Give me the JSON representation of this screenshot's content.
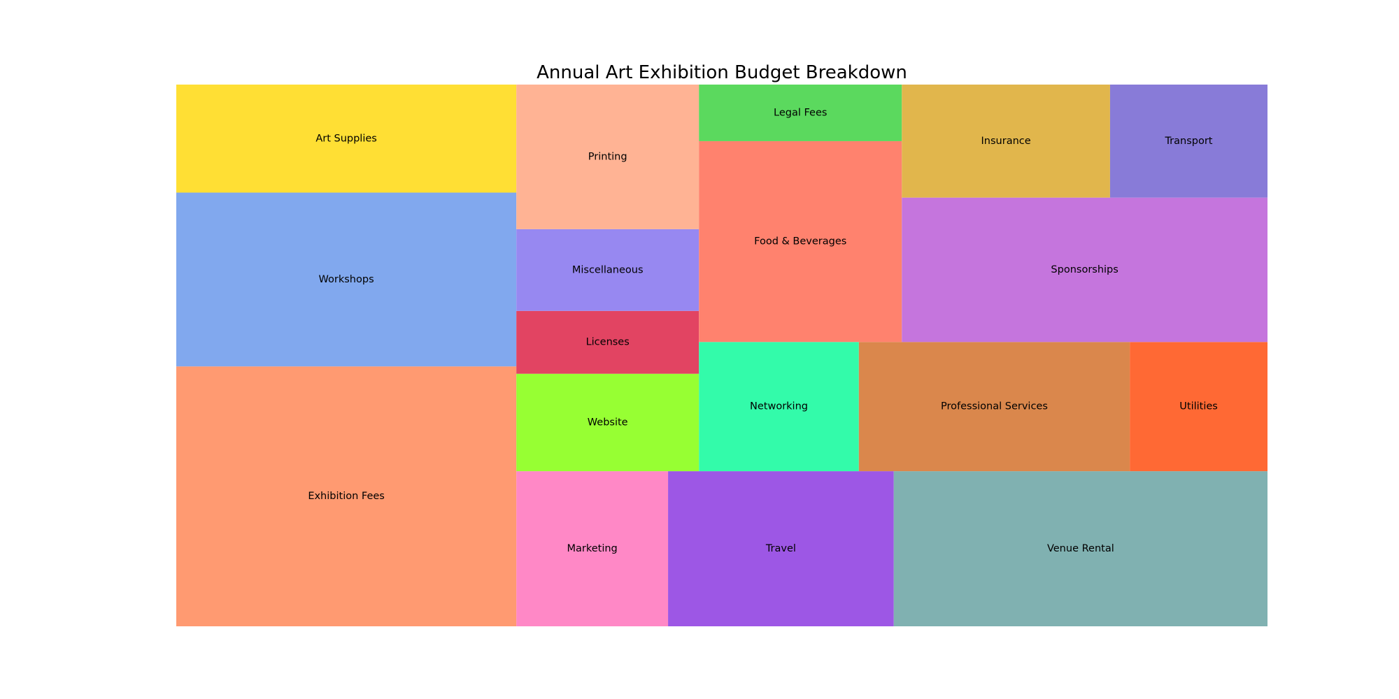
{
  "chart_data": {
    "type": "treemap",
    "title": "Annual Art Exhibition Budget Breakdown",
    "layout": "squarified",
    "unit": "relative area (estimated)",
    "columns": [
      {
        "items": [
          {
            "label": "Exhibition Fees",
            "value": 15.4,
            "color": "#FF9A71"
          },
          {
            "label": "Workshops",
            "value": 10.3,
            "color": "#81A8EE"
          },
          {
            "label": "Art Supplies",
            "value": 6.4,
            "color": "#FFDF34"
          }
        ]
      },
      {
        "bottom_row": [
          {
            "label": "Marketing",
            "value": 4.1,
            "color": "#FF88C6"
          },
          {
            "label": "Travel",
            "value": 6.1,
            "color": "#9D57E5"
          },
          {
            "label": "Venue Rental",
            "value": 10.1,
            "color": "#80B1B1"
          }
        ],
        "top_columns": [
          {
            "items": [
              {
                "label": "Website",
                "value": 3.1,
                "color": "#97FF33"
              },
              {
                "label": "Licenses",
                "value": 2.0,
                "color": "#E24462"
              },
              {
                "label": "Miscellaneous",
                "value": 2.6,
                "color": "#9788F1"
              },
              {
                "label": "Printing",
                "value": 4.6,
                "color": "#FFB394"
              }
            ]
          },
          {
            "bottom_row": [
              {
                "label": "Networking",
                "value": 3.6,
                "color": "#33FBAA"
              },
              {
                "label": "Professional Services",
                "value": 6.1,
                "color": "#DA874C"
              },
              {
                "label": "Utilities",
                "value": 3.1,
                "color": "#FF6934"
              }
            ],
            "top_columns": [
              {
                "items": [
                  {
                    "label": "Food & Beverages",
                    "value": 7.1,
                    "color": "#FF826E"
                  },
                  {
                    "label": "Legal Fees",
                    "value": 2.0,
                    "color": "#5BD95E"
                  }
                ]
              },
              {
                "bottom_row": [
                  {
                    "label": "Sponsorships",
                    "value": 9.2,
                    "color": "#C575DD"
                  }
                ],
                "top_row": [
                  {
                    "label": "Insurance",
                    "value": 4.1,
                    "color": "#E1B64C"
                  },
                  {
                    "label": "Transport",
                    "value": 3.1,
                    "color": "#887BD8"
                  }
                ]
              }
            ]
          }
        ]
      }
    ]
  }
}
